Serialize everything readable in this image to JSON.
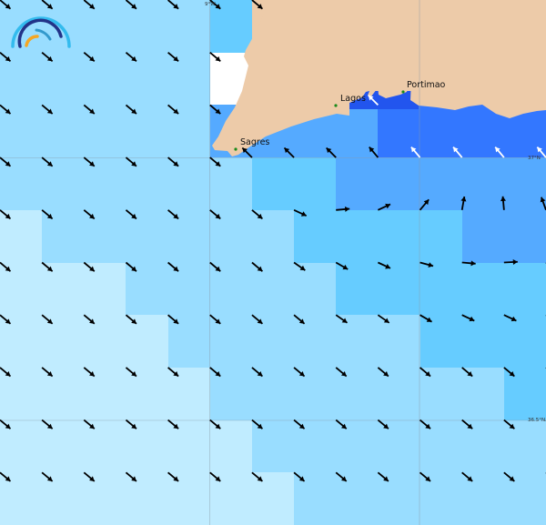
{
  "map": {
    "colors": {
      "very_pale": "#c0ecff",
      "pale": "#99ddff",
      "light": "#66ccff",
      "medium": "#55aaff",
      "strong": "#3377ff",
      "deep": "#2255ee",
      "no_data": "#ffffff",
      "land": "#edcba9",
      "arrow": "#000000",
      "arrow_highlight": "#ffffff"
    },
    "cell_grid": [
      [
        "pale",
        "pale",
        "pale",
        "pale",
        "pale",
        "light",
        "land",
        "land",
        "land",
        "land",
        "land",
        "land",
        "land"
      ],
      [
        "pale",
        "pale",
        "pale",
        "pale",
        "pale",
        "no_data",
        "land",
        "land",
        "land",
        "land",
        "land",
        "land",
        "land"
      ],
      [
        "pale",
        "pale",
        "pale",
        "pale",
        "pale",
        "medium",
        "medium",
        "medium",
        "medium",
        "strong",
        "strong",
        "strong",
        "strong"
      ],
      [
        "pale",
        "pale",
        "pale",
        "pale",
        "pale",
        "pale",
        "light",
        "light",
        "medium",
        "medium",
        "medium",
        "medium",
        "medium"
      ],
      [
        "very_pale",
        "pale",
        "pale",
        "pale",
        "pale",
        "pale",
        "pale",
        "light",
        "light",
        "light",
        "light",
        "medium",
        "medium"
      ],
      [
        "very_pale",
        "very_pale",
        "very_pale",
        "pale",
        "pale",
        "pale",
        "pale",
        "pale",
        "light",
        "light",
        "light",
        "light",
        "light"
      ],
      [
        "very_pale",
        "very_pale",
        "very_pale",
        "very_pale",
        "pale",
        "pale",
        "pale",
        "pale",
        "pale",
        "pale",
        "light",
        "light",
        "light"
      ],
      [
        "very_pale",
        "very_pale",
        "very_pale",
        "very_pale",
        "very_pale",
        "pale",
        "pale",
        "pale",
        "pale",
        "pale",
        "pale",
        "pale",
        "light"
      ],
      [
        "very_pale",
        "very_pale",
        "very_pale",
        "very_pale",
        "very_pale",
        "very_pale",
        "pale",
        "pale",
        "pale",
        "pale",
        "pale",
        "pale",
        "pale"
      ],
      [
        "very_pale",
        "very_pale",
        "very_pale",
        "very_pale",
        "very_pale",
        "very_pale",
        "very_pale",
        "pale",
        "pale",
        "pale",
        "pale",
        "pale",
        "pale"
      ]
    ],
    "arrow_direction_deg_default": 40,
    "arrow_overrides": [
      {
        "row": 3,
        "col": 6,
        "deg": -135
      },
      {
        "row": 3,
        "col": 7,
        "deg": -135
      },
      {
        "row": 3,
        "col": 8,
        "deg": -135
      },
      {
        "row": 3,
        "col": 9,
        "deg": -130
      },
      {
        "row": 3,
        "col": 10,
        "deg": -130,
        "highlight": true
      },
      {
        "row": 3,
        "col": 11,
        "deg": -130,
        "highlight": true
      },
      {
        "row": 3,
        "col": 12,
        "deg": -130,
        "highlight": true
      },
      {
        "row": 3,
        "col": 13,
        "deg": -130,
        "highlight": true
      },
      {
        "row": 2,
        "col": 9,
        "deg": -135,
        "highlight": true
      },
      {
        "row": 4,
        "col": 7,
        "deg": 25
      },
      {
        "row": 4,
        "col": 8,
        "deg": -5
      },
      {
        "row": 4,
        "col": 9,
        "deg": -25
      },
      {
        "row": 4,
        "col": 10,
        "deg": -50
      },
      {
        "row": 4,
        "col": 11,
        "deg": -80
      },
      {
        "row": 4,
        "col": 12,
        "deg": -95
      },
      {
        "row": 4,
        "col": 13,
        "deg": -110
      },
      {
        "row": 5,
        "col": 7,
        "deg": 35
      },
      {
        "row": 5,
        "col": 8,
        "deg": 30
      },
      {
        "row": 5,
        "col": 9,
        "deg": 25
      },
      {
        "row": 5,
        "col": 10,
        "deg": 15
      },
      {
        "row": 5,
        "col": 11,
        "deg": 5
      },
      {
        "row": 5,
        "col": 12,
        "deg": -3
      },
      {
        "row": 6,
        "col": 8,
        "deg": 35
      },
      {
        "row": 6,
        "col": 9,
        "deg": 35
      },
      {
        "row": 6,
        "col": 10,
        "deg": 30
      },
      {
        "row": 6,
        "col": 11,
        "deg": 25
      },
      {
        "row": 6,
        "col": 12,
        "deg": 25
      }
    ],
    "cities": [
      {
        "name": "Lagos"
      },
      {
        "name": "Portimao"
      },
      {
        "name": "Sagres"
      }
    ],
    "axis_labels": {
      "lon_9w": "9°W",
      "lat_37n": "37°N",
      "lat_36_5n": "36.5°N"
    }
  }
}
